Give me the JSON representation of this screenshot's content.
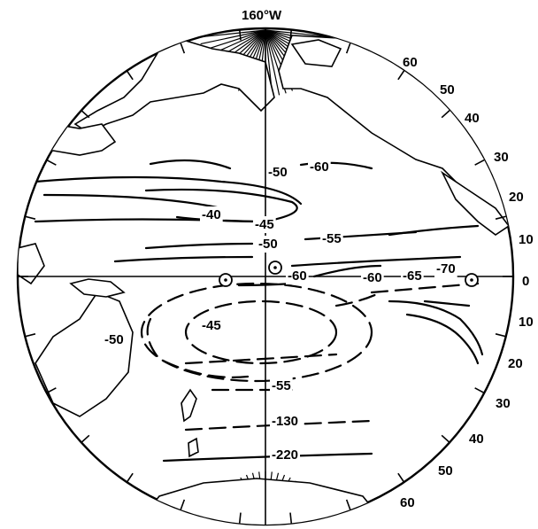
{
  "map": {
    "meridian_label": "160°W",
    "latitude_labels_north": [
      "60",
      "50",
      "40",
      "30",
      "20",
      "10"
    ],
    "equator_label": "0",
    "latitude_labels_south": [
      "10",
      "20",
      "30",
      "40",
      "50",
      "60"
    ],
    "contour_labels": [
      "-50",
      "-60",
      "-40",
      "-45",
      "-50",
      "-55",
      "-60",
      "-60",
      "-65",
      "-70",
      "-45",
      "-50",
      "-55",
      "-130",
      "-220"
    ],
    "station_markers": 3
  },
  "colors": {
    "ink": "#000000",
    "paper": "#ffffff"
  }
}
